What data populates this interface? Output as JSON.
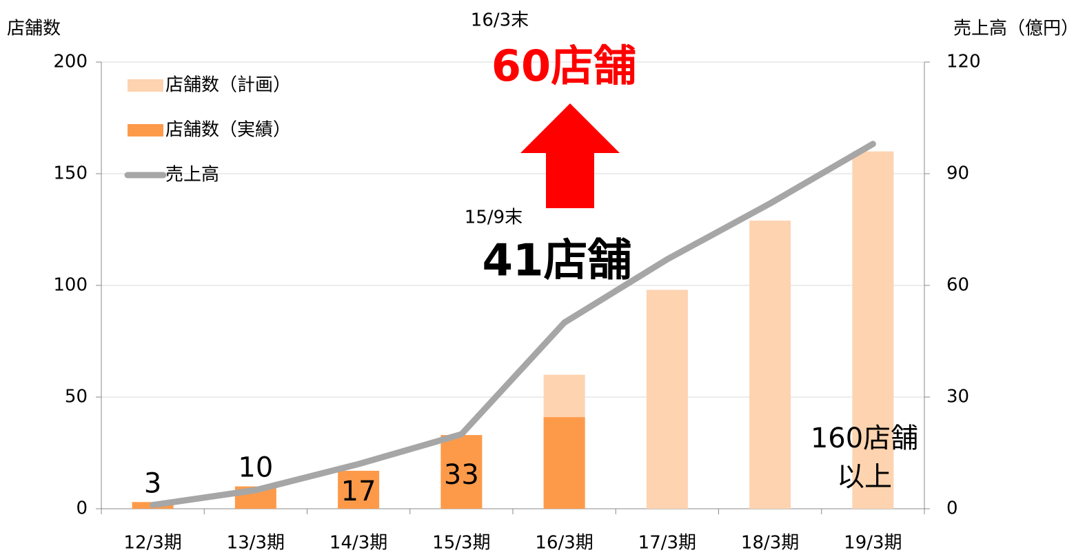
{
  "chart_data": {
    "type": "bar_line",
    "ylabel": "店舗数",
    "y2label": "売上高（億円）",
    "categories": [
      "12/3期",
      "13/3期",
      "14/3期",
      "15/3期",
      "16/3期",
      "17/3期",
      "18/3期",
      "19/3期"
    ],
    "series": [
      {
        "name": "店舗数（計画）",
        "type": "bar",
        "color": "#fdd3b0",
        "values": [
          null,
          null,
          null,
          null,
          60,
          98,
          129,
          160
        ]
      },
      {
        "name": "店舗数（実績）",
        "type": "bar",
        "color": "#fd9a4a",
        "values": [
          3,
          10,
          17,
          33,
          41,
          null,
          null,
          null
        ],
        "value_labels": [
          "3",
          "10",
          "17",
          "33",
          null,
          null,
          null,
          null
        ]
      },
      {
        "name": "売上高",
        "type": "line",
        "axis": "y2",
        "color": "#a6a6a6",
        "values": [
          1,
          5,
          12,
          20,
          50,
          67,
          82,
          98
        ]
      }
    ],
    "ylim": [
      0,
      200
    ],
    "yticks": [
      0,
      50,
      100,
      150,
      200
    ],
    "y2lim": [
      0,
      120
    ],
    "y2ticks": [
      0,
      30,
      60,
      90,
      120
    ],
    "grid": true,
    "legend": "upper left",
    "annotations": [
      "16/3末",
      "60店舗",
      "15/9末",
      "41店舗",
      "160店舗",
      "以上"
    ]
  }
}
